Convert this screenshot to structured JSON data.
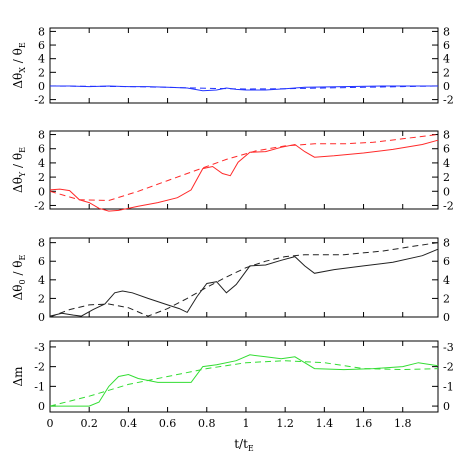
{
  "chart_data": [
    {
      "type": "line",
      "ylabel": "Δθ_X / θ_E",
      "ylabel_parts": {
        "delta": "Δθ",
        "sub": "X",
        "sep": " / θ",
        "sub2": "E"
      },
      "ylim": [
        -2.5,
        8.5
      ],
      "yticks": [
        -2,
        0,
        2,
        4,
        6,
        8
      ],
      "ytick_labels": [
        "-2",
        "0",
        "2",
        "4",
        "6",
        "8"
      ],
      "color": "#2233ff",
      "series": [
        {
          "style": "solid",
          "x": [
            0,
            0.1,
            0.2,
            0.3,
            0.4,
            0.5,
            0.6,
            0.7,
            0.78,
            0.85,
            0.9,
            0.95,
            1.0,
            1.1,
            1.2,
            1.3,
            1.5,
            1.7,
            1.9,
            1.98
          ],
          "y": [
            0,
            0,
            -0.1,
            0,
            -0.1,
            -0.1,
            -0.2,
            -0.3,
            -0.7,
            -0.6,
            -0.3,
            -0.5,
            -0.6,
            -0.6,
            -0.4,
            -0.2,
            -0.1,
            0,
            0,
            0
          ]
        },
        {
          "style": "dashed",
          "x": [
            0,
            0.2,
            0.4,
            0.6,
            0.8,
            1.0,
            1.2,
            1.4,
            1.6,
            1.8,
            1.98
          ],
          "y": [
            0,
            -0.05,
            -0.1,
            -0.2,
            -0.35,
            -0.45,
            -0.4,
            -0.3,
            -0.2,
            -0.1,
            0
          ]
        }
      ]
    },
    {
      "type": "line",
      "ylabel": "Δθ_Y / θ_E",
      "ylabel_parts": {
        "delta": "Δθ",
        "sub": "Y",
        "sep": " / θ",
        "sub2": "E"
      },
      "ylim": [
        -2.5,
        8.5
      ],
      "yticks": [
        -2,
        0,
        2,
        4,
        6,
        8
      ],
      "ytick_labels": [
        "-2",
        "0",
        "2",
        "4",
        "6",
        "8"
      ],
      "color": "#ff2a2a",
      "series": [
        {
          "style": "solid",
          "x": [
            0,
            0.05,
            0.1,
            0.15,
            0.2,
            0.25,
            0.3,
            0.35,
            0.45,
            0.55,
            0.65,
            0.72,
            0.78,
            0.83,
            0.88,
            0.92,
            0.96,
            1.02,
            1.1,
            1.18,
            1.25,
            1.3,
            1.35,
            1.45,
            1.6,
            1.75,
            1.9,
            1.98
          ],
          "y": [
            0.2,
            0.3,
            0.1,
            -1.2,
            -1.6,
            -2.4,
            -2.8,
            -2.7,
            -2.1,
            -1.6,
            -0.9,
            0.2,
            3.2,
            3.5,
            2.5,
            2.2,
            4.1,
            5.5,
            5.6,
            6.2,
            6.6,
            5.6,
            4.8,
            5.0,
            5.4,
            5.9,
            6.6,
            7.2
          ]
        },
        {
          "style": "dashed",
          "x": [
            0,
            0.15,
            0.3,
            0.45,
            0.6,
            0.75,
            0.9,
            1.05,
            1.2,
            1.35,
            1.5,
            1.65,
            1.8,
            1.98
          ],
          "y": [
            0,
            -1.2,
            -1.3,
            0.0,
            1.5,
            3.0,
            4.5,
            5.7,
            6.4,
            6.7,
            6.7,
            6.9,
            7.4,
            8.0
          ]
        }
      ]
    },
    {
      "type": "line",
      "ylabel": "Δθ_0 / θ_E",
      "ylabel_parts": {
        "delta": "Δθ",
        "sub": "0",
        "sep": " / θ",
        "sub2": "E"
      },
      "ylim": [
        0,
        8.5
      ],
      "yticks": [
        0,
        2,
        4,
        6,
        8
      ],
      "ytick_labels": [
        "0",
        "2",
        "4",
        "6",
        "8"
      ],
      "color": "#222222",
      "series": [
        {
          "style": "solid",
          "x": [
            0,
            0.06,
            0.12,
            0.16,
            0.22,
            0.28,
            0.33,
            0.37,
            0.42,
            0.5,
            0.6,
            0.66,
            0.7,
            0.75,
            0.8,
            0.85,
            0.9,
            0.95,
            1.02,
            1.1,
            1.18,
            1.25,
            1.3,
            1.35,
            1.45,
            1.6,
            1.75,
            1.9,
            1.98
          ],
          "y": [
            0.1,
            0.4,
            0.2,
            0.1,
            0.8,
            1.4,
            2.6,
            2.8,
            2.6,
            2.0,
            1.3,
            0.9,
            0.5,
            2.2,
            3.6,
            3.8,
            2.6,
            3.5,
            5.5,
            5.6,
            6.1,
            6.5,
            5.5,
            4.7,
            5.1,
            5.5,
            5.9,
            6.6,
            7.3
          ]
        },
        {
          "style": "dashed",
          "x": [
            0,
            0.1,
            0.2,
            0.3,
            0.4,
            0.5,
            0.6,
            0.7,
            0.8,
            0.9,
            1.0,
            1.1,
            1.2,
            1.3,
            1.5,
            1.7,
            1.85,
            1.98
          ],
          "y": [
            0,
            0.8,
            1.3,
            1.4,
            1.0,
            0.1,
            0.9,
            2.0,
            3.2,
            4.3,
            5.3,
            6.0,
            6.5,
            6.7,
            6.7,
            7.1,
            7.6,
            8.0
          ]
        }
      ]
    },
    {
      "type": "line",
      "ylabel": "Δm",
      "ylabel_parts": {
        "delta": "Δm",
        "sub": "",
        "sep": "",
        "sub2": ""
      },
      "ylim": [
        0.3,
        -3.3
      ],
      "yticks": [
        0,
        -1,
        -2,
        -3
      ],
      "ytick_labels": [
        "0",
        "-1",
        "-2",
        "-3"
      ],
      "color": "#33dd33",
      "series": [
        {
          "style": "solid",
          "x": [
            0,
            0.2,
            0.25,
            0.3,
            0.35,
            0.4,
            0.45,
            0.55,
            0.65,
            0.72,
            0.78,
            0.85,
            0.95,
            1.02,
            1.1,
            1.18,
            1.25,
            1.3,
            1.35,
            1.5,
            1.65,
            1.8,
            1.88,
            1.98
          ],
          "y": [
            0,
            0,
            -0.2,
            -1.0,
            -1.5,
            -1.6,
            -1.4,
            -1.2,
            -1.2,
            -1.2,
            -2.0,
            -2.1,
            -2.3,
            -2.6,
            -2.5,
            -2.4,
            -2.5,
            -2.2,
            -1.9,
            -1.85,
            -1.9,
            -2.0,
            -2.2,
            -2.05
          ]
        },
        {
          "style": "dashed",
          "x": [
            0,
            0.2,
            0.4,
            0.6,
            0.8,
            1.0,
            1.2,
            1.4,
            1.6,
            1.8,
            1.98
          ],
          "y": [
            0,
            -0.5,
            -1.1,
            -1.5,
            -1.9,
            -2.2,
            -2.3,
            -2.2,
            -1.9,
            -1.85,
            -1.9
          ]
        }
      ]
    }
  ],
  "xaxis": {
    "label": "t/t_E",
    "label_parts": {
      "main": "t/t",
      "sub": "E"
    },
    "xlim": [
      0,
      1.98
    ],
    "ticks": [
      0,
      0.2,
      0.4,
      0.6,
      0.8,
      1,
      1.2,
      1.4,
      1.6,
      1.8
    ],
    "tick_labels": [
      "0",
      "0.2",
      "0.4",
      "0.6",
      "0.8",
      "1",
      "1.2",
      "1.4",
      "1.6",
      "1.8"
    ]
  }
}
